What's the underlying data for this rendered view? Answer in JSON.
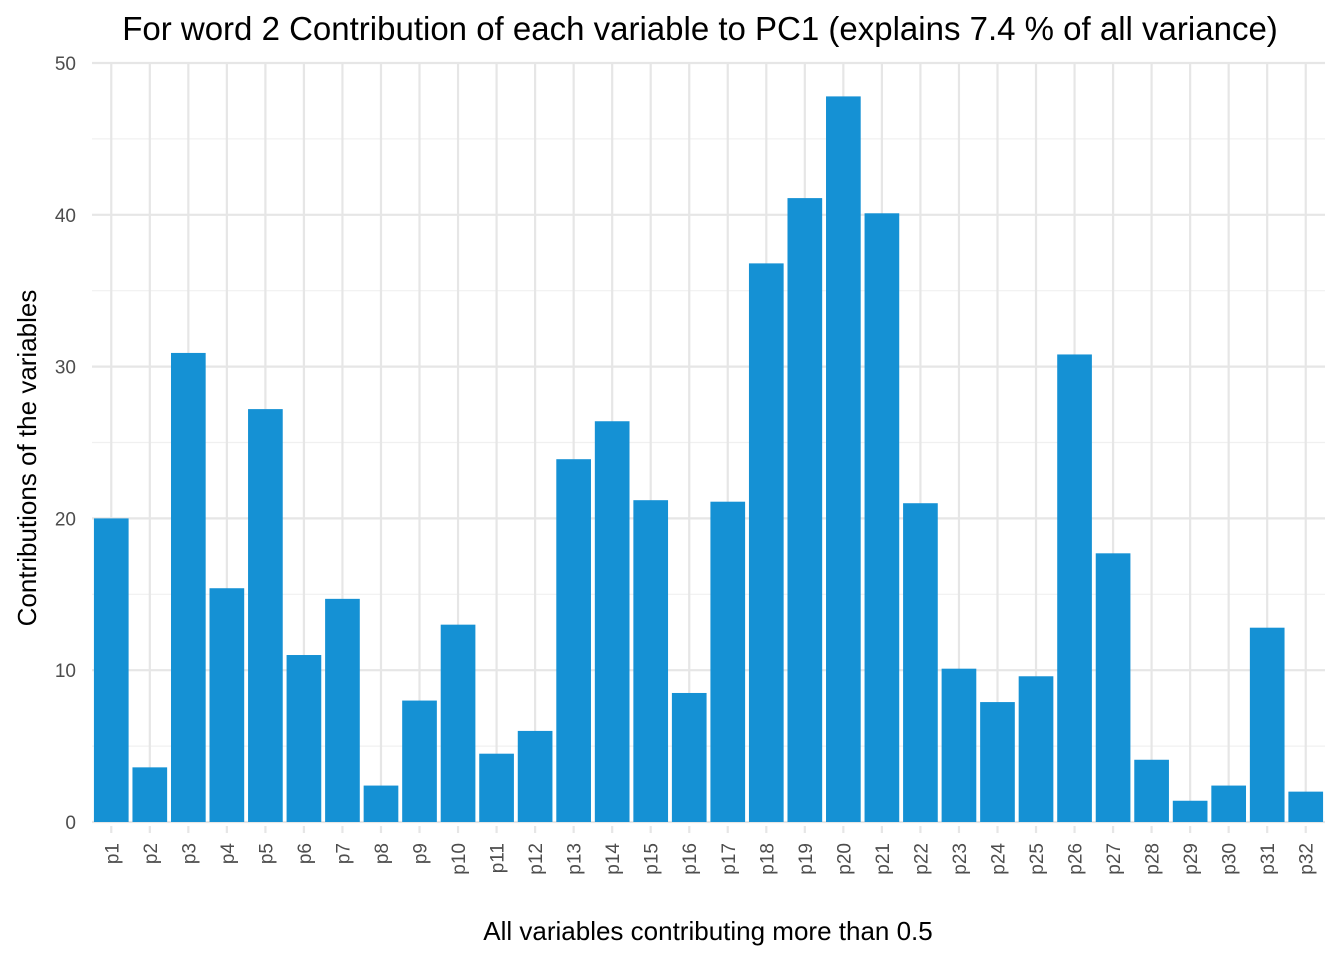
{
  "chart_data": {
    "type": "bar",
    "title": "For word 2 Contribution of each variable to PC1 (explains 7.4 % of all variance)",
    "xlabel": "All variables contributing more than 0.5",
    "ylabel": "Contributions of the variables",
    "categories": [
      "p1",
      "p2",
      "p3",
      "p4",
      "p5",
      "p6",
      "p7",
      "p8",
      "p9",
      "p10",
      "p11",
      "p12",
      "p13",
      "p14",
      "p15",
      "p16",
      "p17",
      "p18",
      "p19",
      "p20",
      "p21",
      "p22",
      "p23",
      "p24",
      "p25",
      "p26",
      "p27",
      "p28",
      "p29",
      "p30",
      "p31",
      "p32"
    ],
    "values": [
      20.0,
      3.6,
      30.9,
      15.4,
      27.2,
      11.0,
      14.7,
      2.4,
      8.0,
      13.0,
      4.5,
      6.0,
      23.9,
      26.4,
      21.2,
      8.5,
      21.1,
      36.8,
      41.1,
      47.8,
      40.1,
      21.0,
      10.1,
      7.9,
      9.6,
      30.8,
      17.7,
      4.1,
      1.4,
      2.4,
      12.8,
      2.0
    ],
    "ylim": [
      0,
      50
    ],
    "yticks": [
      0,
      10,
      20,
      30,
      40,
      50
    ],
    "grid": true,
    "bar_color": "#1591d4"
  },
  "colors": {
    "grid_major": "#e6e6e6",
    "grid_minor": "#f0f0f0",
    "tick_text": "#4d4d4d",
    "text": "#000000"
  }
}
